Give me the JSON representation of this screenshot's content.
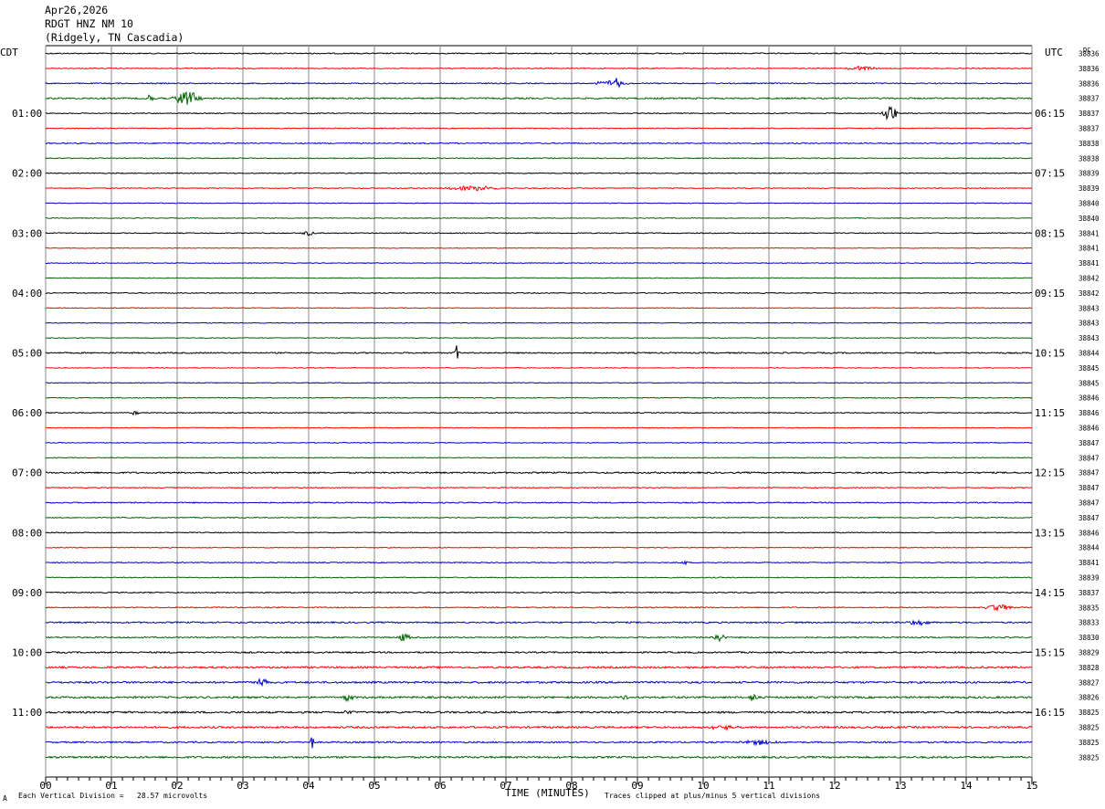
{
  "header": {
    "date": "Apr26,2026",
    "station": "RDGT HNZ NM 10",
    "location": "(Ridgely, TN Cascadia)"
  },
  "left_tz": "CDT",
  "right_tz": "UTC",
  "dc_label": "DC",
  "footer": {
    "marker": "A",
    "scale": "Each Vertical Division =   28.57 microvolts",
    "clip": "Traces clipped at plus/minus 5 vertical divisions"
  },
  "colors": {
    "trace_cycle": [
      "#000000",
      "#ff0000",
      "#0000cc",
      "#006400"
    ],
    "grid": "#000000"
  },
  "chart_data": {
    "type": "line",
    "title": "RDGT HNZ NM 10",
    "xlabel": "TIME (MINUTES)",
    "x_ticks": [
      "00",
      "01",
      "02",
      "03",
      "04",
      "05",
      "06",
      "07",
      "08",
      "09",
      "10",
      "11",
      "12",
      "13",
      "14",
      "15"
    ],
    "xlim": [
      0,
      15
    ],
    "rows": 48,
    "minutes_per_row": 15,
    "left_hour_labels": [
      "01:00",
      "02:00",
      "03:00",
      "04:00",
      "05:00",
      "06:00",
      "07:00",
      "08:00",
      "09:00",
      "10:00",
      "11:00"
    ],
    "right_hour_labels": [
      "06:15",
      "07:15",
      "08:15",
      "09:15",
      "10:15",
      "11:15",
      "12:15",
      "13:15",
      "14:15",
      "15:15",
      "16:15"
    ],
    "dc_offsets": [
      38836,
      38836,
      38836,
      38837,
      38837,
      38837,
      38838,
      38838,
      38839,
      38839,
      38840,
      38840,
      38841,
      38841,
      38841,
      38842,
      38842,
      38843,
      38843,
      38843,
      38844,
      38845,
      38845,
      38846,
      38846,
      38846,
      38847,
      38847,
      38847,
      38847,
      38847,
      38847,
      38846,
      38844,
      38841,
      38839,
      38837,
      38835,
      38833,
      38830,
      38829,
      38828,
      38827,
      38826,
      38825,
      38825,
      38825,
      38825
    ],
    "noise_levels": [
      0.6,
      0.5,
      0.6,
      0.8,
      0.5,
      0.5,
      0.6,
      0.5,
      0.5,
      0.5,
      0.4,
      0.4,
      0.5,
      0.4,
      0.4,
      0.4,
      0.5,
      0.4,
      0.4,
      0.4,
      0.7,
      0.4,
      0.4,
      0.5,
      0.5,
      0.4,
      0.4,
      0.4,
      0.8,
      0.5,
      0.6,
      0.5,
      0.5,
      0.5,
      0.5,
      0.5,
      0.6,
      0.6,
      0.8,
      0.7,
      0.8,
      1.0,
      1.0,
      1.0,
      1.0,
      1.0,
      0.8,
      1.0
    ],
    "events": [
      {
        "row": 2,
        "minute": 8.7,
        "amp": 10,
        "width": 0.05
      },
      {
        "row": 2,
        "minute": 8.6,
        "amp": 3,
        "width": 0.4
      },
      {
        "row": 3,
        "minute": 1.6,
        "amp": 5,
        "width": 0.08
      },
      {
        "row": 3,
        "minute": 2.15,
        "amp": 10,
        "width": 0.25
      },
      {
        "row": 4,
        "minute": 12.85,
        "amp": 10,
        "width": 0.15
      },
      {
        "row": 1,
        "minute": 12.4,
        "amp": 3,
        "width": 0.3
      },
      {
        "row": 9,
        "minute": 6.5,
        "amp": 3,
        "width": 0.6
      },
      {
        "row": 12,
        "minute": 4.0,
        "amp": 3,
        "width": 0.15
      },
      {
        "row": 20,
        "minute": 6.25,
        "amp": 9,
        "width": 0.05
      },
      {
        "row": 24,
        "minute": 1.35,
        "amp": 3,
        "width": 0.08
      },
      {
        "row": 34,
        "minute": 9.7,
        "amp": 3,
        "width": 0.1
      },
      {
        "row": 39,
        "minute": 5.45,
        "amp": 5,
        "width": 0.12
      },
      {
        "row": 39,
        "minute": 10.25,
        "amp": 5,
        "width": 0.15
      },
      {
        "row": 42,
        "minute": 3.3,
        "amp": 7,
        "width": 0.12
      },
      {
        "row": 43,
        "minute": 4.6,
        "amp": 4,
        "width": 0.12
      },
      {
        "row": 43,
        "minute": 10.75,
        "amp": 5,
        "width": 0.1
      },
      {
        "row": 43,
        "minute": 8.8,
        "amp": 3,
        "width": 0.1
      },
      {
        "row": 44,
        "minute": 4.6,
        "amp": 3,
        "width": 0.1
      },
      {
        "row": 45,
        "minute": 10.3,
        "amp": 3,
        "width": 0.3
      },
      {
        "row": 46,
        "minute": 4.05,
        "amp": 14,
        "width": 0.03
      },
      {
        "row": 46,
        "minute": 10.9,
        "amp": 3,
        "width": 0.4
      },
      {
        "row": 37,
        "minute": 14.5,
        "amp": 4,
        "width": 0.3
      },
      {
        "row": 38,
        "minute": 13.3,
        "amp": 3,
        "width": 0.3
      }
    ]
  }
}
